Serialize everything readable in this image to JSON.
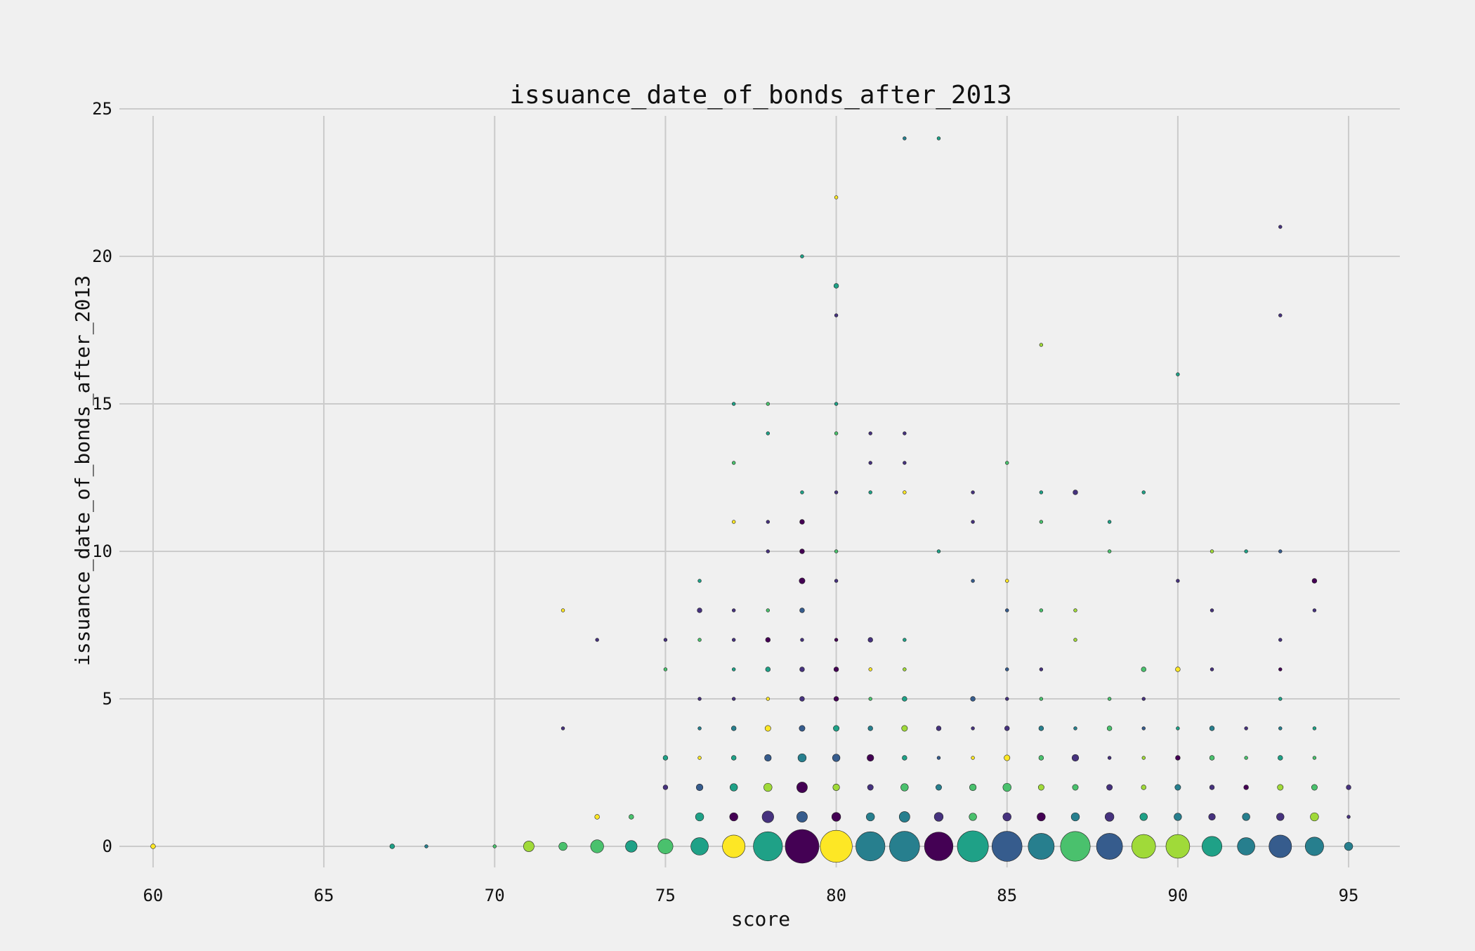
{
  "chart_data": {
    "type": "scatter",
    "title": "issuance_date_of_bonds_after_2013",
    "xlabel": "score",
    "ylabel": "issuance_date_of_bonds_after_2013",
    "xlim": [
      58.5,
      96.5
    ],
    "ylim": [
      -1,
      25
    ],
    "xticks": [
      60,
      65,
      70,
      75,
      80,
      85,
      90,
      95
    ],
    "yticks": [
      0,
      5,
      10,
      15,
      20,
      25
    ],
    "grid": true,
    "legend": "none",
    "size_encoding": "point count (relative 0-1)",
    "palette": [
      "#440154",
      "#46327e",
      "#365c8d",
      "#277f8e",
      "#1fa187",
      "#4ac16d",
      "#a0da39",
      "#fde725"
    ],
    "points": [
      {
        "x": 60,
        "y": 0,
        "s": 0.02,
        "c": "#fde725"
      },
      {
        "x": 67,
        "y": 0,
        "s": 0.02,
        "c": "#1fa187"
      },
      {
        "x": 68,
        "y": 0,
        "s": 0.01,
        "c": "#277f8e"
      },
      {
        "x": 70,
        "y": 0,
        "s": 0.01,
        "c": "#4ac16d"
      },
      {
        "x": 71,
        "y": 0,
        "s": 0.1,
        "c": "#a0da39"
      },
      {
        "x": 72,
        "y": 0,
        "s": 0.06,
        "c": "#4ac16d"
      },
      {
        "x": 73,
        "y": 0,
        "s": 0.15,
        "c": "#4ac16d"
      },
      {
        "x": 74,
        "y": 0,
        "s": 0.12,
        "c": "#1fa187"
      },
      {
        "x": 75,
        "y": 0,
        "s": 0.2,
        "c": "#4ac16d"
      },
      {
        "x": 76,
        "y": 0,
        "s": 0.27,
        "c": "#1fa187"
      },
      {
        "x": 77,
        "y": 0,
        "s": 0.45,
        "c": "#fde725"
      },
      {
        "x": 78,
        "y": 0,
        "s": 0.75,
        "c": "#1fa187"
      },
      {
        "x": 79,
        "y": 0,
        "s": 1.0,
        "c": "#440154"
      },
      {
        "x": 80,
        "y": 0,
        "s": 0.9,
        "c": "#fde725"
      },
      {
        "x": 81,
        "y": 0,
        "s": 0.75,
        "c": "#277f8e"
      },
      {
        "x": 82,
        "y": 0,
        "s": 0.8,
        "c": "#277f8e"
      },
      {
        "x": 83,
        "y": 0,
        "s": 0.72,
        "c": "#440154"
      },
      {
        "x": 84,
        "y": 0,
        "s": 0.85,
        "c": "#1fa187"
      },
      {
        "x": 85,
        "y": 0,
        "s": 0.8,
        "c": "#365c8d"
      },
      {
        "x": 86,
        "y": 0,
        "s": 0.6,
        "c": "#277f8e"
      },
      {
        "x": 87,
        "y": 0,
        "s": 0.78,
        "c": "#4ac16d"
      },
      {
        "x": 88,
        "y": 0,
        "s": 0.6,
        "c": "#365c8d"
      },
      {
        "x": 89,
        "y": 0,
        "s": 0.5,
        "c": "#a0da39"
      },
      {
        "x": 90,
        "y": 0,
        "s": 0.5,
        "c": "#a0da39"
      },
      {
        "x": 91,
        "y": 0,
        "s": 0.35,
        "c": "#1fa187"
      },
      {
        "x": 92,
        "y": 0,
        "s": 0.27,
        "c": "#277f8e"
      },
      {
        "x": 93,
        "y": 0,
        "s": 0.45,
        "c": "#365c8d"
      },
      {
        "x": 94,
        "y": 0,
        "s": 0.3,
        "c": "#277f8e"
      },
      {
        "x": 95,
        "y": 0,
        "s": 0.06,
        "c": "#277f8e"
      },
      {
        "x": 73,
        "y": 1,
        "s": 0.02,
        "c": "#fde725"
      },
      {
        "x": 74,
        "y": 1,
        "s": 0.02,
        "c": "#4ac16d"
      },
      {
        "x": 76,
        "y": 1,
        "s": 0.06,
        "c": "#1fa187"
      },
      {
        "x": 77,
        "y": 1,
        "s": 0.06,
        "c": "#440154"
      },
      {
        "x": 78,
        "y": 1,
        "s": 0.12,
        "c": "#46327e"
      },
      {
        "x": 79,
        "y": 1,
        "s": 0.1,
        "c": "#365c8d"
      },
      {
        "x": 80,
        "y": 1,
        "s": 0.07,
        "c": "#440154"
      },
      {
        "x": 81,
        "y": 1,
        "s": 0.06,
        "c": "#277f8e"
      },
      {
        "x": 82,
        "y": 1,
        "s": 0.1,
        "c": "#277f8e"
      },
      {
        "x": 83,
        "y": 1,
        "s": 0.07,
        "c": "#46327e"
      },
      {
        "x": 84,
        "y": 1,
        "s": 0.05,
        "c": "#4ac16d"
      },
      {
        "x": 85,
        "y": 1,
        "s": 0.06,
        "c": "#46327e"
      },
      {
        "x": 86,
        "y": 1,
        "s": 0.06,
        "c": "#440154"
      },
      {
        "x": 87,
        "y": 1,
        "s": 0.06,
        "c": "#277f8e"
      },
      {
        "x": 88,
        "y": 1,
        "s": 0.07,
        "c": "#46327e"
      },
      {
        "x": 89,
        "y": 1,
        "s": 0.05,
        "c": "#1fa187"
      },
      {
        "x": 90,
        "y": 1,
        "s": 0.05,
        "c": "#277f8e"
      },
      {
        "x": 91,
        "y": 1,
        "s": 0.04,
        "c": "#46327e"
      },
      {
        "x": 92,
        "y": 1,
        "s": 0.05,
        "c": "#277f8e"
      },
      {
        "x": 93,
        "y": 1,
        "s": 0.05,
        "c": "#46327e"
      },
      {
        "x": 94,
        "y": 1,
        "s": 0.06,
        "c": "#a0da39"
      },
      {
        "x": 95,
        "y": 1,
        "s": 0.01,
        "c": "#46327e"
      },
      {
        "x": 75,
        "y": 2,
        "s": 0.02,
        "c": "#46327e"
      },
      {
        "x": 76,
        "y": 2,
        "s": 0.04,
        "c": "#365c8d"
      },
      {
        "x": 77,
        "y": 2,
        "s": 0.05,
        "c": "#1fa187"
      },
      {
        "x": 78,
        "y": 2,
        "s": 0.06,
        "c": "#a0da39"
      },
      {
        "x": 79,
        "y": 2,
        "s": 0.1,
        "c": "#440154"
      },
      {
        "x": 80,
        "y": 2,
        "s": 0.04,
        "c": "#a0da39"
      },
      {
        "x": 81,
        "y": 2,
        "s": 0.03,
        "c": "#46327e"
      },
      {
        "x": 82,
        "y": 2,
        "s": 0.05,
        "c": "#4ac16d"
      },
      {
        "x": 83,
        "y": 2,
        "s": 0.03,
        "c": "#277f8e"
      },
      {
        "x": 84,
        "y": 2,
        "s": 0.04,
        "c": "#4ac16d"
      },
      {
        "x": 85,
        "y": 2,
        "s": 0.06,
        "c": "#4ac16d"
      },
      {
        "x": 86,
        "y": 2,
        "s": 0.03,
        "c": "#a0da39"
      },
      {
        "x": 87,
        "y": 2,
        "s": 0.03,
        "c": "#4ac16d"
      },
      {
        "x": 88,
        "y": 2,
        "s": 0.03,
        "c": "#46327e"
      },
      {
        "x": 89,
        "y": 2,
        "s": 0.02,
        "c": "#a0da39"
      },
      {
        "x": 90,
        "y": 2,
        "s": 0.03,
        "c": "#277f8e"
      },
      {
        "x": 91,
        "y": 2,
        "s": 0.02,
        "c": "#46327e"
      },
      {
        "x": 92,
        "y": 2,
        "s": 0.02,
        "c": "#440154"
      },
      {
        "x": 93,
        "y": 2,
        "s": 0.03,
        "c": "#a0da39"
      },
      {
        "x": 94,
        "y": 2,
        "s": 0.03,
        "c": "#4ac16d"
      },
      {
        "x": 95,
        "y": 2,
        "s": 0.02,
        "c": "#46327e"
      },
      {
        "x": 75,
        "y": 3,
        "s": 0.02,
        "c": "#1fa187"
      },
      {
        "x": 76,
        "y": 3,
        "s": 0.01,
        "c": "#fde725"
      },
      {
        "x": 77,
        "y": 3,
        "s": 0.02,
        "c": "#1fa187"
      },
      {
        "x": 78,
        "y": 3,
        "s": 0.04,
        "c": "#365c8d"
      },
      {
        "x": 79,
        "y": 3,
        "s": 0.06,
        "c": "#277f8e"
      },
      {
        "x": 80,
        "y": 3,
        "s": 0.05,
        "c": "#365c8d"
      },
      {
        "x": 81,
        "y": 3,
        "s": 0.04,
        "c": "#440154"
      },
      {
        "x": 82,
        "y": 3,
        "s": 0.02,
        "c": "#1fa187"
      },
      {
        "x": 83,
        "y": 3,
        "s": 0.01,
        "c": "#365c8d"
      },
      {
        "x": 84,
        "y": 3,
        "s": 0.01,
        "c": "#fde725"
      },
      {
        "x": 85,
        "y": 3,
        "s": 0.03,
        "c": "#fde725"
      },
      {
        "x": 86,
        "y": 3,
        "s": 0.02,
        "c": "#4ac16d"
      },
      {
        "x": 87,
        "y": 3,
        "s": 0.04,
        "c": "#46327e"
      },
      {
        "x": 88,
        "y": 3,
        "s": 0.01,
        "c": "#46327e"
      },
      {
        "x": 89,
        "y": 3,
        "s": 0.01,
        "c": "#a0da39"
      },
      {
        "x": 90,
        "y": 3,
        "s": 0.02,
        "c": "#440154"
      },
      {
        "x": 91,
        "y": 3,
        "s": 0.02,
        "c": "#4ac16d"
      },
      {
        "x": 92,
        "y": 3,
        "s": 0.01,
        "c": "#4ac16d"
      },
      {
        "x": 93,
        "y": 3,
        "s": 0.02,
        "c": "#1fa187"
      },
      {
        "x": 94,
        "y": 3,
        "s": 0.01,
        "c": "#4ac16d"
      },
      {
        "x": 72,
        "y": 4,
        "s": 0.01,
        "c": "#46327e"
      },
      {
        "x": 76,
        "y": 4,
        "s": 0.01,
        "c": "#277f8e"
      },
      {
        "x": 77,
        "y": 4,
        "s": 0.02,
        "c": "#277f8e"
      },
      {
        "x": 78,
        "y": 4,
        "s": 0.03,
        "c": "#fde725"
      },
      {
        "x": 79,
        "y": 4,
        "s": 0.03,
        "c": "#365c8d"
      },
      {
        "x": 80,
        "y": 4,
        "s": 0.03,
        "c": "#1fa187"
      },
      {
        "x": 81,
        "y": 4,
        "s": 0.02,
        "c": "#277f8e"
      },
      {
        "x": 82,
        "y": 4,
        "s": 0.03,
        "c": "#a0da39"
      },
      {
        "x": 83,
        "y": 4,
        "s": 0.02,
        "c": "#46327e"
      },
      {
        "x": 84,
        "y": 4,
        "s": 0.01,
        "c": "#46327e"
      },
      {
        "x": 85,
        "y": 4,
        "s": 0.02,
        "c": "#46327e"
      },
      {
        "x": 86,
        "y": 4,
        "s": 0.02,
        "c": "#277f8e"
      },
      {
        "x": 87,
        "y": 4,
        "s": 0.01,
        "c": "#277f8e"
      },
      {
        "x": 88,
        "y": 4,
        "s": 0.02,
        "c": "#4ac16d"
      },
      {
        "x": 89,
        "y": 4,
        "s": 0.01,
        "c": "#365c8d"
      },
      {
        "x": 90,
        "y": 4,
        "s": 0.01,
        "c": "#1fa187"
      },
      {
        "x": 91,
        "y": 4,
        "s": 0.02,
        "c": "#277f8e"
      },
      {
        "x": 92,
        "y": 4,
        "s": 0.01,
        "c": "#46327e"
      },
      {
        "x": 93,
        "y": 4,
        "s": 0.01,
        "c": "#277f8e"
      },
      {
        "x": 94,
        "y": 4,
        "s": 0.01,
        "c": "#1fa187"
      },
      {
        "x": 76,
        "y": 5,
        "s": 0.01,
        "c": "#46327e"
      },
      {
        "x": 77,
        "y": 5,
        "s": 0.01,
        "c": "#46327e"
      },
      {
        "x": 78,
        "y": 5,
        "s": 0.01,
        "c": "#fde725"
      },
      {
        "x": 79,
        "y": 5,
        "s": 0.02,
        "c": "#46327e"
      },
      {
        "x": 80,
        "y": 5,
        "s": 0.02,
        "c": "#440154"
      },
      {
        "x": 81,
        "y": 5,
        "s": 0.01,
        "c": "#4ac16d"
      },
      {
        "x": 82,
        "y": 5,
        "s": 0.02,
        "c": "#1fa187"
      },
      {
        "x": 84,
        "y": 5,
        "s": 0.02,
        "c": "#365c8d"
      },
      {
        "x": 85,
        "y": 5,
        "s": 0.01,
        "c": "#46327e"
      },
      {
        "x": 86,
        "y": 5,
        "s": 0.01,
        "c": "#4ac16d"
      },
      {
        "x": 88,
        "y": 5,
        "s": 0.01,
        "c": "#4ac16d"
      },
      {
        "x": 89,
        "y": 5,
        "s": 0.01,
        "c": "#46327e"
      },
      {
        "x": 93,
        "y": 5,
        "s": 0.01,
        "c": "#1fa187"
      },
      {
        "x": 75,
        "y": 6,
        "s": 0.01,
        "c": "#4ac16d"
      },
      {
        "x": 77,
        "y": 6,
        "s": 0.01,
        "c": "#1fa187"
      },
      {
        "x": 78,
        "y": 6,
        "s": 0.02,
        "c": "#1fa187"
      },
      {
        "x": 79,
        "y": 6,
        "s": 0.02,
        "c": "#46327e"
      },
      {
        "x": 80,
        "y": 6,
        "s": 0.02,
        "c": "#440154"
      },
      {
        "x": 81,
        "y": 6,
        "s": 0.01,
        "c": "#fde725"
      },
      {
        "x": 82,
        "y": 6,
        "s": 0.01,
        "c": "#a0da39"
      },
      {
        "x": 85,
        "y": 6,
        "s": 0.01,
        "c": "#365c8d"
      },
      {
        "x": 86,
        "y": 6,
        "s": 0.01,
        "c": "#46327e"
      },
      {
        "x": 89,
        "y": 6,
        "s": 0.02,
        "c": "#4ac16d"
      },
      {
        "x": 90,
        "y": 6,
        "s": 0.02,
        "c": "#fde725"
      },
      {
        "x": 91,
        "y": 6,
        "s": 0.01,
        "c": "#46327e"
      },
      {
        "x": 93,
        "y": 6,
        "s": 0.01,
        "c": "#440154"
      },
      {
        "x": 73,
        "y": 7,
        "s": 0.01,
        "c": "#46327e"
      },
      {
        "x": 75,
        "y": 7,
        "s": 0.01,
        "c": "#46327e"
      },
      {
        "x": 76,
        "y": 7,
        "s": 0.01,
        "c": "#4ac16d"
      },
      {
        "x": 77,
        "y": 7,
        "s": 0.01,
        "c": "#46327e"
      },
      {
        "x": 78,
        "y": 7,
        "s": 0.02,
        "c": "#440154"
      },
      {
        "x": 79,
        "y": 7,
        "s": 0.01,
        "c": "#46327e"
      },
      {
        "x": 80,
        "y": 7,
        "s": 0.01,
        "c": "#440154"
      },
      {
        "x": 81,
        "y": 7,
        "s": 0.02,
        "c": "#46327e"
      },
      {
        "x": 82,
        "y": 7,
        "s": 0.01,
        "c": "#1fa187"
      },
      {
        "x": 87,
        "y": 7,
        "s": 0.01,
        "c": "#a0da39"
      },
      {
        "x": 93,
        "y": 7,
        "s": 0.01,
        "c": "#46327e"
      },
      {
        "x": 72,
        "y": 8,
        "s": 0.01,
        "c": "#fde725"
      },
      {
        "x": 76,
        "y": 8,
        "s": 0.02,
        "c": "#46327e"
      },
      {
        "x": 77,
        "y": 8,
        "s": 0.01,
        "c": "#46327e"
      },
      {
        "x": 78,
        "y": 8,
        "s": 0.01,
        "c": "#4ac16d"
      },
      {
        "x": 79,
        "y": 8,
        "s": 0.02,
        "c": "#365c8d"
      },
      {
        "x": 85,
        "y": 8,
        "s": 0.01,
        "c": "#365c8d"
      },
      {
        "x": 86,
        "y": 8,
        "s": 0.01,
        "c": "#4ac16d"
      },
      {
        "x": 87,
        "y": 8,
        "s": 0.01,
        "c": "#a0da39"
      },
      {
        "x": 91,
        "y": 8,
        "s": 0.01,
        "c": "#46327e"
      },
      {
        "x": 94,
        "y": 8,
        "s": 0.01,
        "c": "#46327e"
      },
      {
        "x": 76,
        "y": 9,
        "s": 0.01,
        "c": "#1fa187"
      },
      {
        "x": 79,
        "y": 9,
        "s": 0.03,
        "c": "#440154"
      },
      {
        "x": 80,
        "y": 9,
        "s": 0.01,
        "c": "#46327e"
      },
      {
        "x": 84,
        "y": 9,
        "s": 0.01,
        "c": "#365c8d"
      },
      {
        "x": 85,
        "y": 9,
        "s": 0.01,
        "c": "#fde725"
      },
      {
        "x": 90,
        "y": 9,
        "s": 0.01,
        "c": "#46327e"
      },
      {
        "x": 94,
        "y": 9,
        "s": 0.02,
        "c": "#440154"
      },
      {
        "x": 78,
        "y": 10,
        "s": 0.01,
        "c": "#46327e"
      },
      {
        "x": 79,
        "y": 10,
        "s": 0.02,
        "c": "#440154"
      },
      {
        "x": 80,
        "y": 10,
        "s": 0.01,
        "c": "#4ac16d"
      },
      {
        "x": 83,
        "y": 10,
        "s": 0.01,
        "c": "#1fa187"
      },
      {
        "x": 88,
        "y": 10,
        "s": 0.01,
        "c": "#4ac16d"
      },
      {
        "x": 91,
        "y": 10,
        "s": 0.01,
        "c": "#a0da39"
      },
      {
        "x": 92,
        "y": 10,
        "s": 0.01,
        "c": "#1fa187"
      },
      {
        "x": 93,
        "y": 10,
        "s": 0.01,
        "c": "#365c8d"
      },
      {
        "x": 77,
        "y": 11,
        "s": 0.01,
        "c": "#fde725"
      },
      {
        "x": 78,
        "y": 11,
        "s": 0.01,
        "c": "#46327e"
      },
      {
        "x": 79,
        "y": 11,
        "s": 0.02,
        "c": "#440154"
      },
      {
        "x": 84,
        "y": 11,
        "s": 0.01,
        "c": "#46327e"
      },
      {
        "x": 86,
        "y": 11,
        "s": 0.01,
        "c": "#4ac16d"
      },
      {
        "x": 88,
        "y": 11,
        "s": 0.01,
        "c": "#1fa187"
      },
      {
        "x": 79,
        "y": 12,
        "s": 0.01,
        "c": "#1fa187"
      },
      {
        "x": 80,
        "y": 12,
        "s": 0.01,
        "c": "#46327e"
      },
      {
        "x": 81,
        "y": 12,
        "s": 0.01,
        "c": "#1fa187"
      },
      {
        "x": 82,
        "y": 12,
        "s": 0.01,
        "c": "#fde725"
      },
      {
        "x": 84,
        "y": 12,
        "s": 0.01,
        "c": "#46327e"
      },
      {
        "x": 86,
        "y": 12,
        "s": 0.01,
        "c": "#1fa187"
      },
      {
        "x": 87,
        "y": 12,
        "s": 0.02,
        "c": "#46327e"
      },
      {
        "x": 89,
        "y": 12,
        "s": 0.01,
        "c": "#1fa187"
      },
      {
        "x": 77,
        "y": 13,
        "s": 0.01,
        "c": "#4ac16d"
      },
      {
        "x": 81,
        "y": 13,
        "s": 0.01,
        "c": "#46327e"
      },
      {
        "x": 82,
        "y": 13,
        "s": 0.01,
        "c": "#46327e"
      },
      {
        "x": 85,
        "y": 13,
        "s": 0.01,
        "c": "#4ac16d"
      },
      {
        "x": 78,
        "y": 14,
        "s": 0.01,
        "c": "#1fa187"
      },
      {
        "x": 80,
        "y": 14,
        "s": 0.01,
        "c": "#4ac16d"
      },
      {
        "x": 81,
        "y": 14,
        "s": 0.01,
        "c": "#46327e"
      },
      {
        "x": 82,
        "y": 14,
        "s": 0.01,
        "c": "#46327e"
      },
      {
        "x": 77,
        "y": 15,
        "s": 0.01,
        "c": "#1fa187"
      },
      {
        "x": 78,
        "y": 15,
        "s": 0.01,
        "c": "#4ac16d"
      },
      {
        "x": 80,
        "y": 15,
        "s": 0.01,
        "c": "#1fa187"
      },
      {
        "x": 90,
        "y": 16,
        "s": 0.01,
        "c": "#1fa187"
      },
      {
        "x": 86,
        "y": 17,
        "s": 0.01,
        "c": "#a0da39"
      },
      {
        "x": 80,
        "y": 18,
        "s": 0.01,
        "c": "#46327e"
      },
      {
        "x": 93,
        "y": 18,
        "s": 0.01,
        "c": "#46327e"
      },
      {
        "x": 80,
        "y": 19,
        "s": 0.02,
        "c": "#1fa187"
      },
      {
        "x": 79,
        "y": 20,
        "s": 0.01,
        "c": "#1fa187"
      },
      {
        "x": 93,
        "y": 21,
        "s": 0.01,
        "c": "#46327e"
      },
      {
        "x": 80,
        "y": 22,
        "s": 0.01,
        "c": "#fde725"
      },
      {
        "x": 82,
        "y": 24,
        "s": 0.01,
        "c": "#277f8e"
      },
      {
        "x": 83,
        "y": 24,
        "s": 0.01,
        "c": "#1fa187"
      }
    ]
  }
}
